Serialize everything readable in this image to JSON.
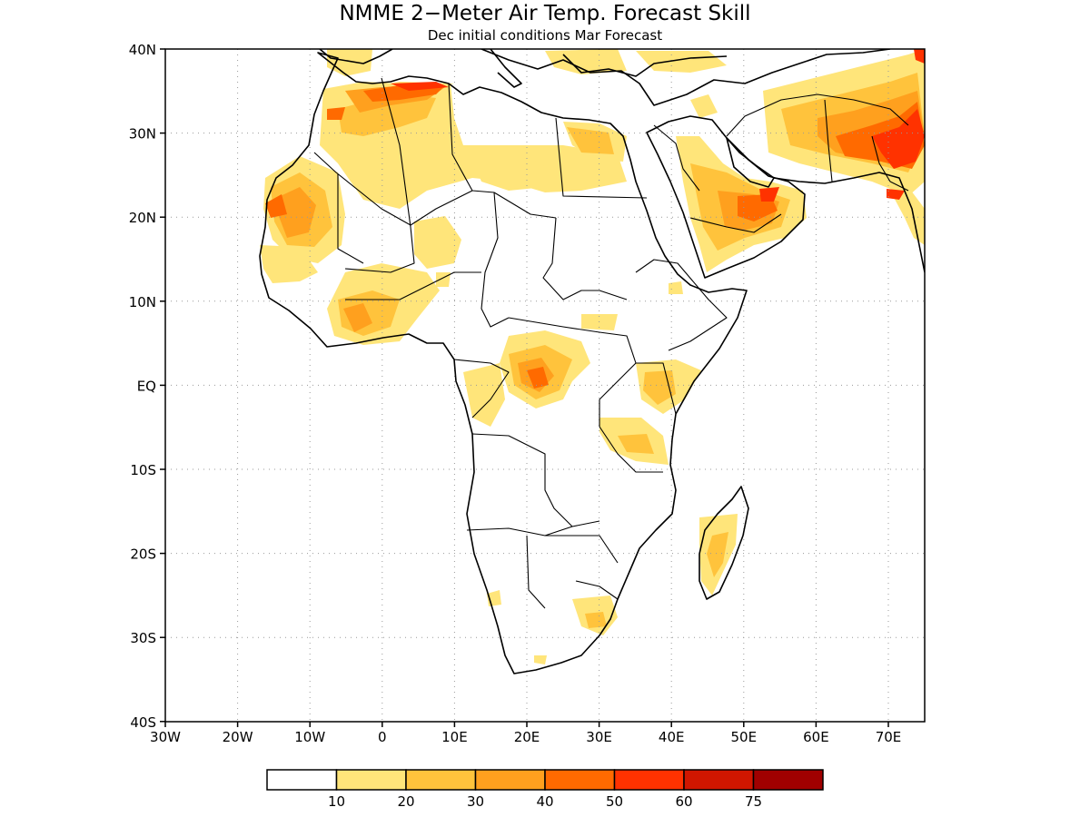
{
  "title": "NMME 2−Meter Air Temp. Forecast Skill",
  "subtitle": "Dec initial conditions  Mar Forecast",
  "lon_ticks": [
    "30W",
    "20W",
    "10W",
    "0",
    "10E",
    "20E",
    "30E",
    "40E",
    "50E",
    "60E",
    "70E"
  ],
  "lat_ticks": [
    "40N",
    "30N",
    "20N",
    "10N",
    "EQ",
    "10S",
    "20S",
    "30S",
    "40S"
  ],
  "colorbar": {
    "colors": [
      "#ffffff",
      "#ffe57a",
      "#ffc33c",
      "#ffa01e",
      "#ff6a00",
      "#ff3200",
      "#d01600",
      "#a00000"
    ],
    "labels": [
      "10",
      "20",
      "30",
      "40",
      "50",
      "60",
      "75"
    ]
  },
  "skill_regions": [
    {
      "level": 1,
      "desc": "Morocco and NW Africa"
    },
    {
      "level": 2,
      "desc": "Western Sahara / Mauritania"
    },
    {
      "level": 4,
      "desc": "Atlas coast maximum"
    },
    {
      "level": 1,
      "desc": "Libya / Egypt Sahara"
    },
    {
      "level": 1,
      "desc": "West Africa Sahel"
    },
    {
      "level": 3,
      "desc": "Gulf of Guinea coast"
    },
    {
      "level": 3,
      "desc": "Central Africa"
    },
    {
      "level": 5,
      "desc": "Congo maximum"
    },
    {
      "level": 3,
      "desc": "Kenya / Tanzania"
    },
    {
      "level": 3,
      "desc": "Arabian Peninsula"
    },
    {
      "level": 5,
      "desc": "Oman maximum"
    },
    {
      "level": 3,
      "desc": "Iran / Pakistan"
    },
    {
      "level": 6,
      "desc": "NW India maximum"
    },
    {
      "level": 3,
      "desc": "Madagascar"
    },
    {
      "level": 2,
      "desc": "South Africa"
    }
  ]
}
